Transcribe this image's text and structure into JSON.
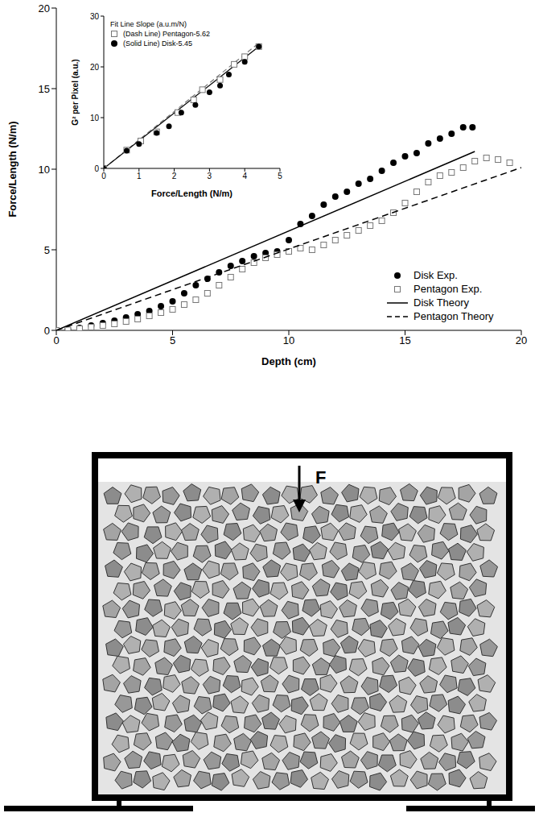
{
  "chart_data": [
    {
      "type": "scatter",
      "x_label": "Depth (cm)",
      "y_label": "Force/Length (N/m)",
      "xlim": [
        0,
        20
      ],
      "xticks": [
        0,
        5,
        10,
        15,
        20
      ],
      "ylim": [
        0,
        20
      ],
      "yticks": [
        0,
        5,
        10,
        15,
        20
      ],
      "legend": "lower right",
      "series": [
        {
          "name": "Disk Exp.",
          "type": "scatter",
          "marker": "circle",
          "color": "#000000",
          "x": [
            0,
            0.5,
            1,
            1.5,
            2,
            2.5,
            3,
            3.5,
            4,
            4.5,
            5,
            5.5,
            6,
            6.5,
            7,
            7.5,
            8,
            8.5,
            9,
            9.5,
            10,
            10.5,
            11,
            11.5,
            12,
            12.5,
            13,
            13.5,
            14,
            14.5,
            15,
            15.5,
            16,
            16.5,
            17,
            17.5,
            17.9
          ],
          "values": [
            0,
            0.05,
            0.15,
            0.3,
            0.45,
            0.6,
            0.8,
            1.0,
            1.2,
            1.5,
            1.8,
            2.3,
            2.8,
            3.2,
            3.6,
            4.0,
            4.3,
            4.6,
            4.8,
            4.9,
            5.6,
            6.6,
            7.1,
            7.8,
            8.3,
            8.6,
            9.1,
            9.4,
            9.9,
            10.4,
            10.8,
            11.0,
            11.6,
            11.9,
            12.2,
            12.6,
            12.6
          ]
        },
        {
          "name": "Pentagon Exp.",
          "type": "scatter",
          "marker": "open_square",
          "color": "#777777",
          "x": [
            0,
            0.5,
            1,
            1.5,
            2,
            2.5,
            3,
            3.5,
            4,
            4.5,
            5,
            5.5,
            6,
            6.5,
            7,
            7.5,
            8,
            8.5,
            9,
            9.5,
            10,
            10.5,
            11,
            11.5,
            12,
            12.5,
            13,
            13.5,
            14,
            14.5,
            15,
            15.5,
            16,
            16.5,
            17,
            17.5,
            18,
            18.5,
            19,
            19.5
          ],
          "values": [
            0,
            0.03,
            0.1,
            0.2,
            0.3,
            0.4,
            0.55,
            0.7,
            0.9,
            1.1,
            1.3,
            1.6,
            1.9,
            2.3,
            2.8,
            3.3,
            3.8,
            4.2,
            4.5,
            4.7,
            4.9,
            5.1,
            5.0,
            5.3,
            5.6,
            5.9,
            6.2,
            6.5,
            6.8,
            7.3,
            7.9,
            8.6,
            9.2,
            9.6,
            9.8,
            10.1,
            10.5,
            10.7,
            10.6,
            10.4
          ]
        },
        {
          "name": "Disk Theory",
          "type": "line",
          "line_style": "solid",
          "color": "#000000",
          "x": [
            0,
            18
          ],
          "values": [
            0,
            11.1
          ]
        },
        {
          "name": "Pentagon Theory",
          "type": "line",
          "line_style": "dashed",
          "color": "#000000",
          "x": [
            0,
            20
          ],
          "values": [
            0,
            10.1
          ]
        }
      ]
    },
    {
      "type": "scatter",
      "x_label": "Force/Length (N/m)",
      "y_label": "G² per Pixel (a.u.)",
      "legend_title": "Fit Line Slope (a.u.m/N)",
      "legend": "upper left",
      "xlim": [
        0,
        5
      ],
      "xticks": [
        0,
        1,
        2,
        3,
        4,
        5
      ],
      "ylim": [
        0,
        30
      ],
      "yticks": [
        0,
        10,
        20,
        30
      ],
      "series": [
        {
          "name": "(Dash Line) Pentagon-5.62",
          "marker": "open_square",
          "color": "#777777",
          "x": [
            0,
            0.65,
            1.05,
            1.5,
            2.1,
            2.55,
            2.8,
            3.3,
            3.7,
            4.0,
            4.4
          ],
          "values": [
            0,
            3.6,
            5.4,
            7.2,
            11,
            13.5,
            15.5,
            17.5,
            20.5,
            22,
            24
          ],
          "fit": {
            "line_style": "dashed",
            "x": [
              0,
              4.4
            ],
            "values": [
              0,
              24.7
            ]
          }
        },
        {
          "name": "(Solid Line) Disk-5.45",
          "marker": "circle",
          "color": "#000000",
          "x": [
            0,
            0.65,
            1.0,
            1.5,
            1.85,
            2.2,
            2.6,
            3.0,
            3.3,
            3.55,
            4.0,
            4.4
          ],
          "values": [
            0,
            3.5,
            4.8,
            7,
            8.3,
            11,
            12.5,
            15,
            16.3,
            18.5,
            21,
            24
          ],
          "fit": {
            "line_style": "solid",
            "x": [
              0,
              4.4
            ],
            "values": [
              0,
              24.0
            ]
          }
        }
      ]
    }
  ],
  "diagram": {
    "force_label": "F"
  }
}
